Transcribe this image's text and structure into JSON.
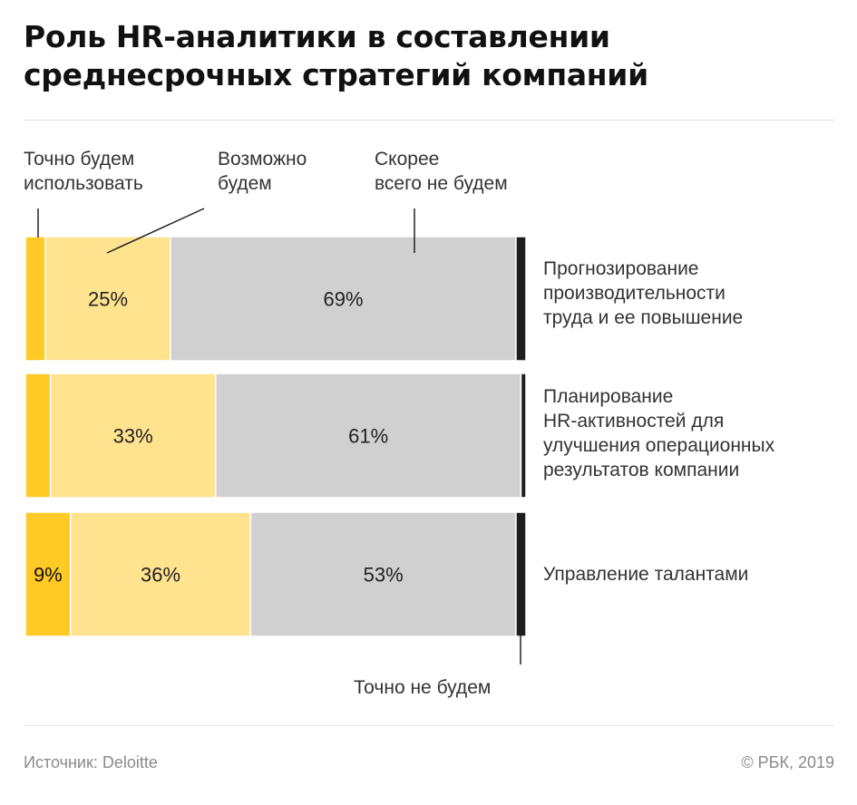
{
  "title_lines": [
    "Роль HR-аналитики в составлении",
    "среднесрочных стратегий компаний"
  ],
  "legend": {
    "definitely_use": [
      "Точно будем",
      "использовать"
    ],
    "maybe": [
      "Возможно",
      "будем"
    ],
    "probably_not": [
      "Скорее",
      "всего не будем"
    ],
    "definitely_not": "Точно не будем"
  },
  "categories": [
    [
      "Прогнозирование",
      "производительности",
      "труда и ее повышение"
    ],
    [
      "Планирование",
      "HR-активностей для",
      "улучшения операционных",
      "результатов компании"
    ],
    [
      "Управление талантами"
    ]
  ],
  "colors": {
    "definitely_use": "#FFC926",
    "maybe": "#FFE38F",
    "probably_not": "#D0D0D0",
    "definitely_not": "#1E1E1E"
  },
  "chart_data": {
    "type": "bar",
    "orientation": "horizontal",
    "stacked": true,
    "categories": [
      "Прогнозирование производительности труда и ее повышение",
      "Планирование HR-активностей для улучшения операционных результатов компании",
      "Управление талантами"
    ],
    "series": [
      {
        "name": "Точно будем использовать",
        "values": [
          4,
          5,
          9
        ],
        "labels": [
          "",
          "",
          "9%"
        ]
      },
      {
        "name": "Возможно будем",
        "values": [
          25,
          33,
          36
        ],
        "labels": [
          "25%",
          "33%",
          "36%"
        ]
      },
      {
        "name": "Скорее всего не будем",
        "values": [
          69,
          61,
          53
        ],
        "labels": [
          "69%",
          "61%",
          "53%"
        ]
      },
      {
        "name": "Точно не будем",
        "values": [
          2,
          1,
          2
        ],
        "labels": [
          "",
          "",
          ""
        ]
      }
    ],
    "xlim": [
      0,
      100
    ]
  },
  "footer": {
    "source": "Источник: Deloitte",
    "copyright": "© РБК, 2019"
  }
}
